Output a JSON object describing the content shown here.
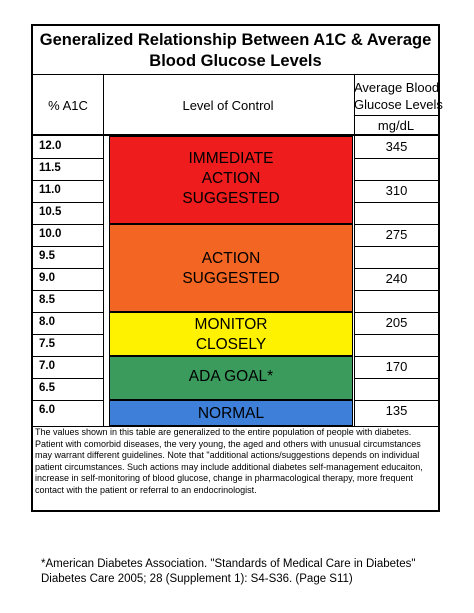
{
  "title": {
    "line1": "Generalized Relationship Between A1C & Average",
    "line2": "Blood Glucose Levels"
  },
  "headers": {
    "a1c": "% A1C",
    "control": "Level of Control",
    "glucose_line1": "Average Blood",
    "glucose_line2": "Glucose Levels",
    "unit": "mg/dL"
  },
  "a1c_rows": [
    "12.0",
    "11.5",
    "11.0",
    "10.5",
    "10.0",
    "9.5",
    "9.0",
    "8.5",
    "8.0",
    "7.5",
    "7.0",
    "6.5",
    "6.0"
  ],
  "glucose_rows": [
    "345",
    "",
    "310",
    "",
    "275",
    "",
    "240",
    "",
    "205",
    "",
    "170",
    "",
    "135"
  ],
  "bands": [
    {
      "line1": "IMMEDIATE",
      "line2": "ACTION",
      "line3": "SUGGESTED",
      "color": "#ee1c1c"
    },
    {
      "line1": "ACTION",
      "line2": "SUGGESTED",
      "color": "#f26522"
    },
    {
      "line1": "MONITOR",
      "line2": "CLOSELY",
      "color": "#fff200"
    },
    {
      "line1": "ADA GOAL*",
      "color": "#3a9b5c"
    },
    {
      "line1": "NORMAL",
      "color": "#3d7fd9"
    }
  ],
  "note_text": "The values shown in this table are generalized to the entire population of people with diabetes. Patient with comorbid diseases, the very young, the aged and others with unusual circumstances may warrant different guidelines.  Note that \"additional actions/suggestions depends on individual patient circumstances.  Such actions may include additional diabetes self-management educaiton, increase in self-monitoring of blood glucose, change in pharmacological therapy, more frequent contact with the patient or referral to an endocrinologist.",
  "footnote": {
    "line1": "*American Diabetes Association.  \"Standards of Medical Care in Diabetes\"",
    "line2": "Diabetes Care 2005; 28 (Supplement 1): S4-S36. (Page S11)"
  }
}
